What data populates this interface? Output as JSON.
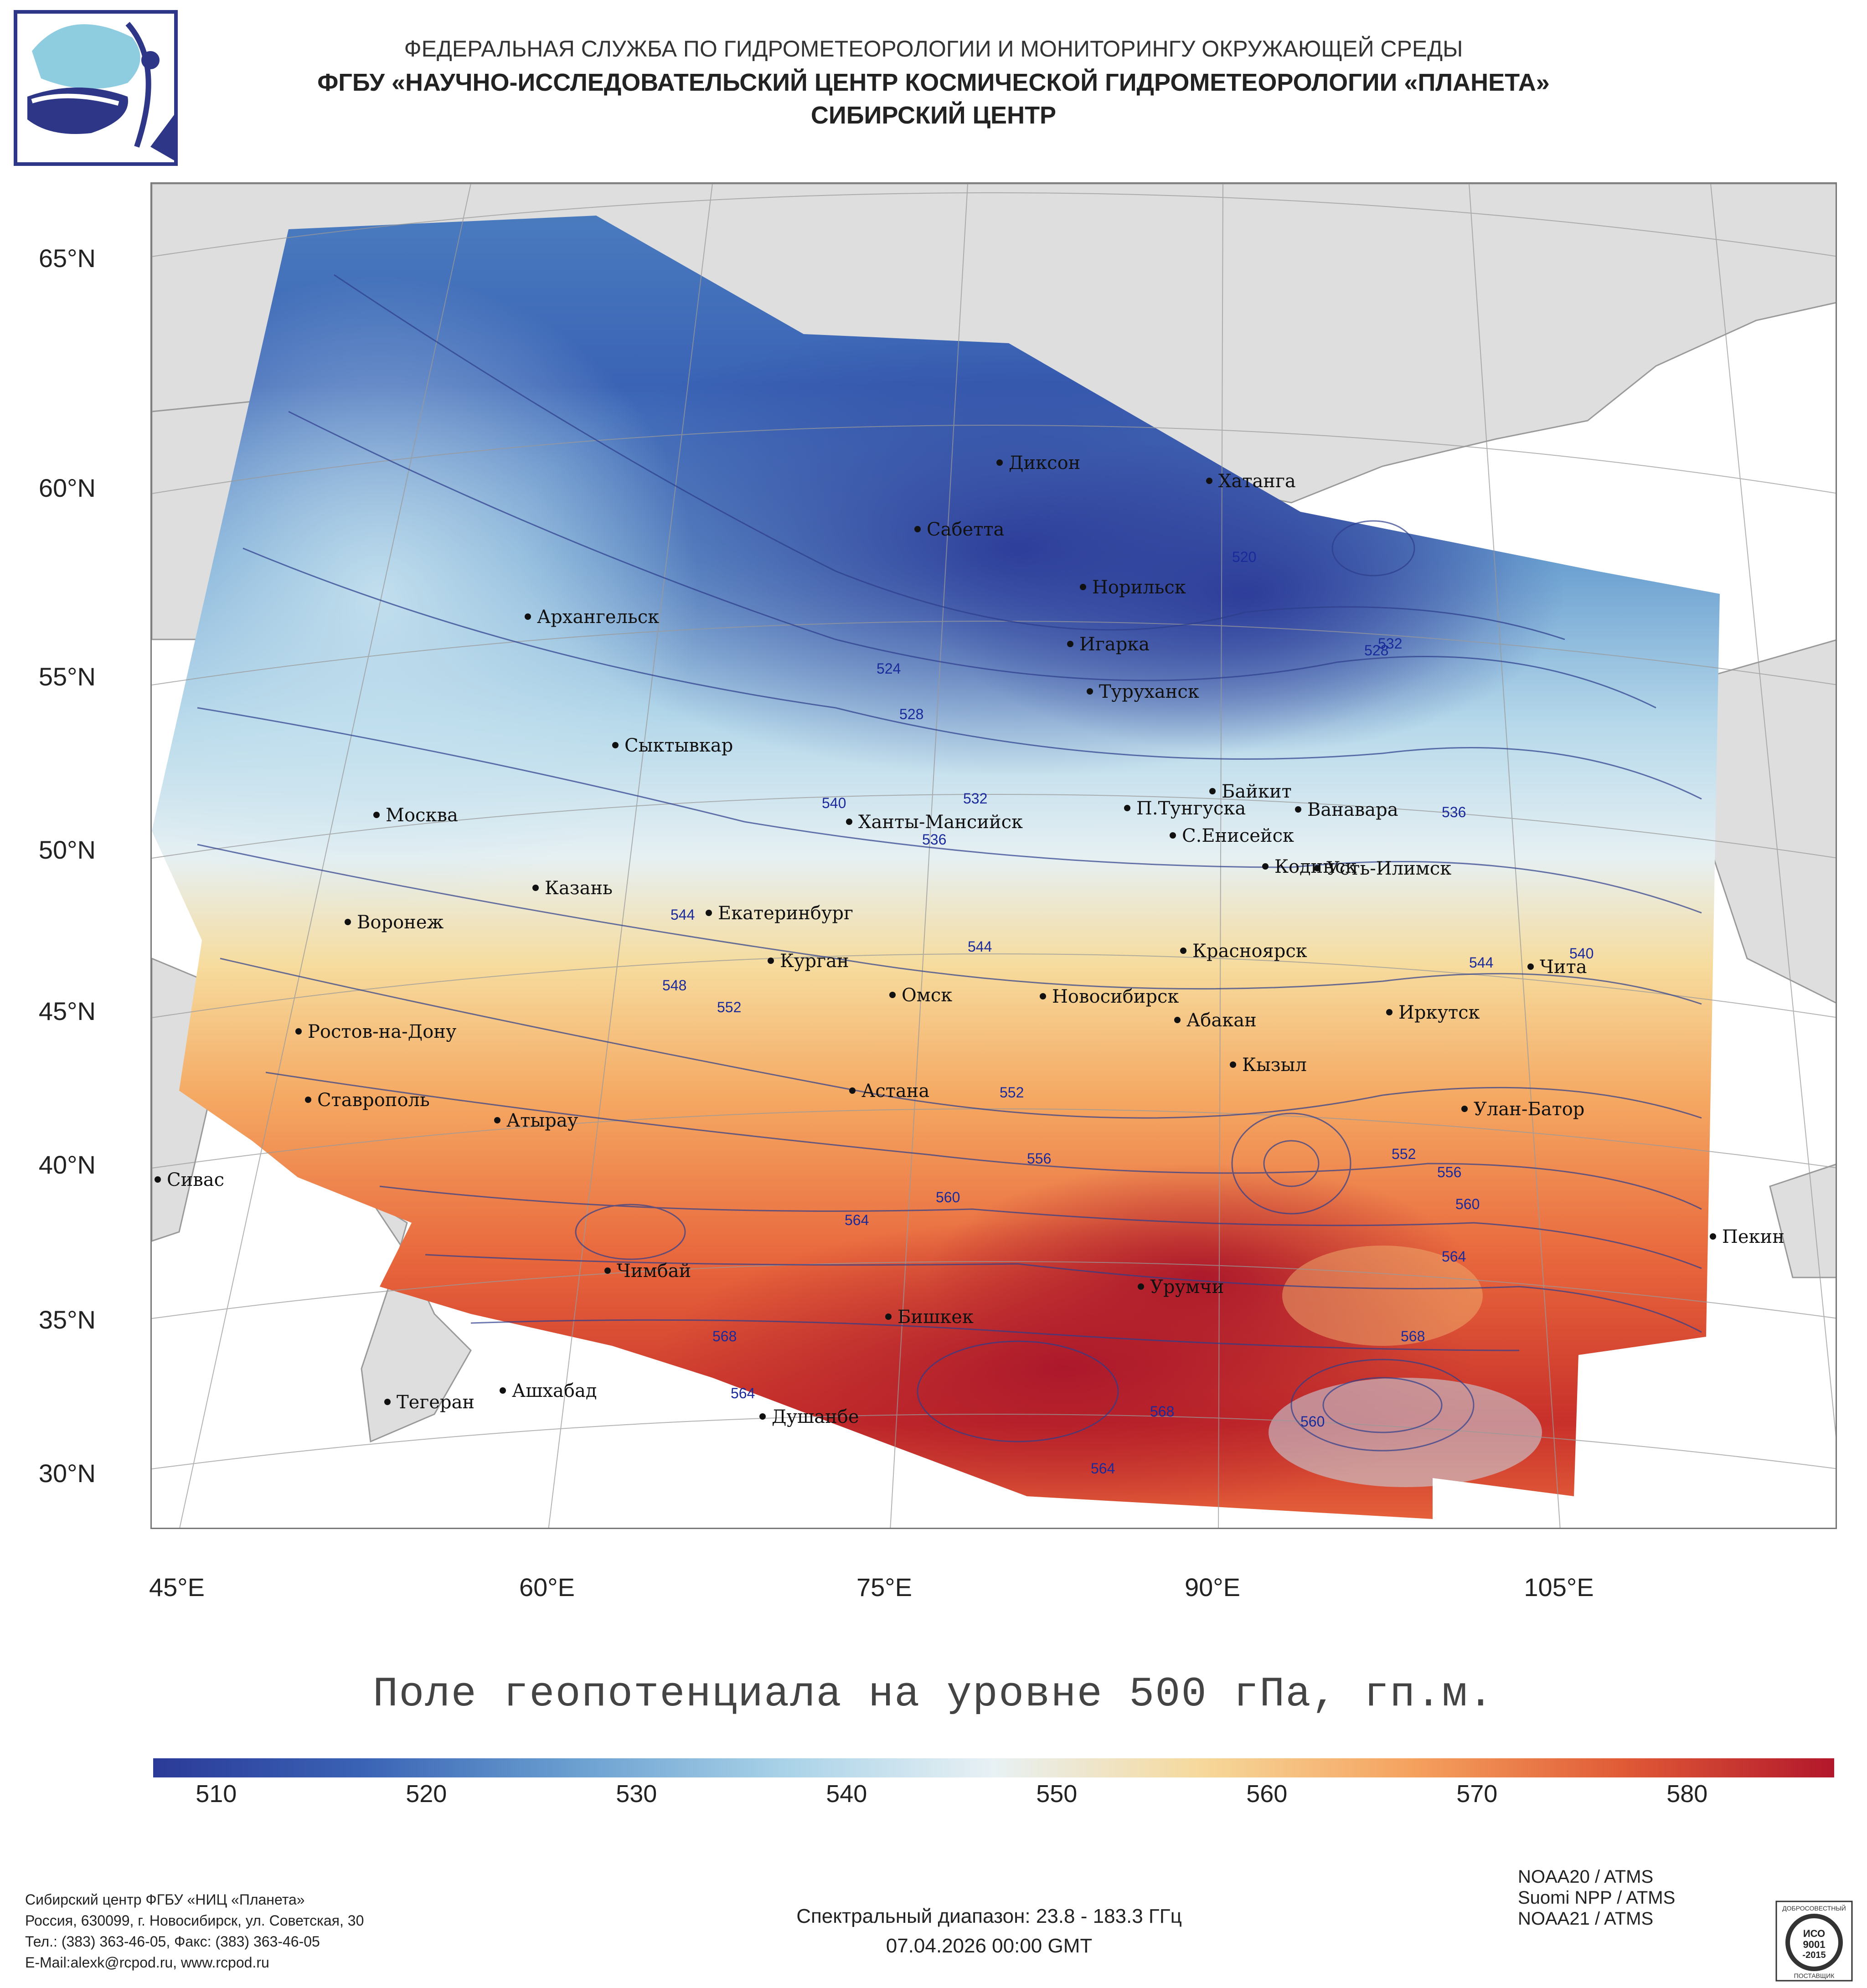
{
  "header": {
    "line1": "ФЕДЕРАЛЬНАЯ СЛУЖБА ПО ГИДРОМЕТЕОРОЛОГИИ И МОНИТОРИНГУ ОКРУЖАЮЩЕЙ СРЕДЫ",
    "line2": "ФГБУ «НАУЧНО-ИССЛЕДОВАТЕЛЬСКИЙ ЦЕНТР КОСМИЧЕСКОЙ ГИДРОМЕТЕОРОЛОГИИ «ПЛАНЕТА»",
    "line3": "СИБИРСКИЙ ЦЕНТР"
  },
  "logo": {
    "icon": "planeta-logo-icon"
  },
  "map": {
    "lat_labels": [
      "65°N",
      "60°N",
      "55°N",
      "50°N",
      "45°N",
      "40°N",
      "35°N",
      "30°N"
    ],
    "lon_labels": [
      "45°E",
      "60°E",
      "75°E",
      "90°E",
      "105°E"
    ],
    "cities": [
      "Диксон",
      "Хатанга",
      "Сабетта",
      "Норильск",
      "Архангельск",
      "Игарка",
      "Туруханск",
      "Сыктывкар",
      "Байкит",
      "Москва",
      "П.Тунгуска",
      "Ванавара",
      "Ханты-Мансийск",
      "С.Енисейск",
      "Казань",
      "Кодинск",
      "Усть-Илимск",
      "Воронеж",
      "Екатеринбург",
      "Красноярск",
      "Курган",
      "Чита",
      "Омск",
      "Новосибирск",
      "Ростов-на-Дону",
      "Иркутск",
      "Абакан",
      "Кызыл",
      "Ставрополь",
      "Астана",
      "Улан-Батор",
      "Атырау",
      "Сивас",
      "Пекин",
      "Чимбай",
      "Урумчи",
      "Бишкек",
      "Ашхабад",
      "Тегеран",
      "Душанбе"
    ],
    "contour_labels": [
      "520",
      "524",
      "528",
      "532",
      "536",
      "540",
      "544",
      "548",
      "552",
      "556",
      "560",
      "564",
      "568"
    ]
  },
  "caption": "Поле геопотенциала на уровне 500 гПа, гп.м.",
  "colorbar": {
    "ticks": [
      "510",
      "520",
      "530",
      "540",
      "550",
      "560",
      "570",
      "580"
    ],
    "min": 507,
    "max": 587,
    "colors": [
      "#2b3a98",
      "#3a63b5",
      "#6a9fd0",
      "#a9d2e8",
      "#e8f1f4",
      "#f6d89a",
      "#f5a15e",
      "#e05a36",
      "#b2172b"
    ]
  },
  "footer": {
    "org": "Сибирский центр ФГБУ «НИЦ «Планета»",
    "address": "Россия, 630099, г. Новосибирск, ул. Советская, 30",
    "phone": "Тел.: (383) 363-46-05, Факс: (383) 363-46-05",
    "email": "E-Mail:alexk@rcpod.ru, www.rcpod.ru",
    "spectral": "Спектральный диапазон: 23.8 - 183.3 ГГц",
    "datetime": "07.04.2026 00:00 GMT",
    "satellites": [
      "NOAA20 / ATMS",
      "Suomi NPP / ATMS",
      "NOAA21 / ATMS"
    ],
    "badge": {
      "top": "ДОБРОСОВЕСТНЫЙ",
      "line1": "ИСО",
      "line2": "9001",
      "line3": "-2015",
      "bottom": "ПОСТАВЩИК"
    }
  }
}
